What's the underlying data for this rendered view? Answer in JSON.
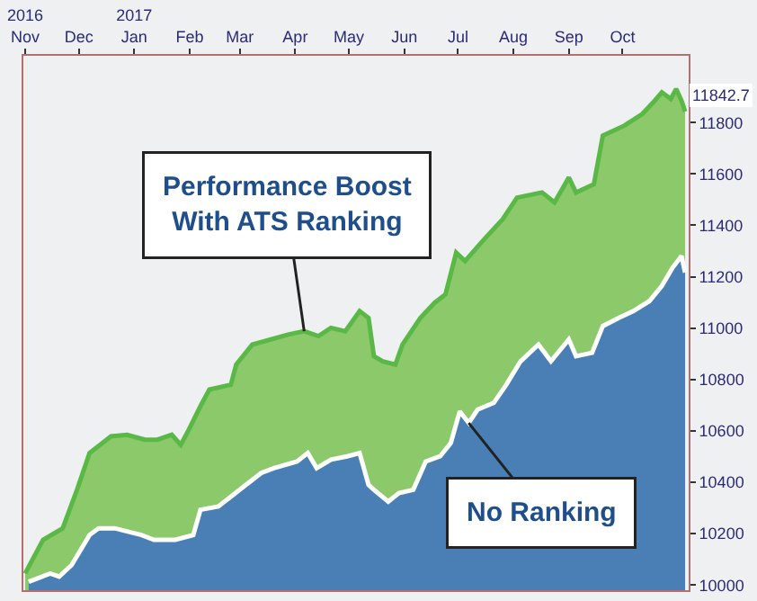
{
  "chart_data": {
    "type": "area",
    "xlim": [
      "2016-10-31",
      "2017-11-07"
    ],
    "xticks": [
      {
        "value": "2016-11-01",
        "label": "2016\nNov"
      },
      {
        "value": "2016-12-01",
        "label": "Dec"
      },
      {
        "value": "2017-01-01",
        "label": "2017\nJan"
      },
      {
        "value": "2017-02-01",
        "label": "Feb"
      },
      {
        "value": "2017-03-01",
        "label": "Mar"
      },
      {
        "value": "2017-04-01",
        "label": "Apr"
      },
      {
        "value": "2017-05-01",
        "label": "May"
      },
      {
        "value": "2017-06-01",
        "label": "Jun"
      },
      {
        "value": "2017-07-01",
        "label": "Jul"
      },
      {
        "value": "2017-08-01",
        "label": "Aug"
      },
      {
        "value": "2017-09-01",
        "label": "Sep"
      },
      {
        "value": "2017-10-01",
        "label": "Oct"
      }
    ],
    "ylim": [
      9980,
      12060
    ],
    "yticks": [
      10000,
      10200,
      10400,
      10600,
      10800,
      11000,
      11200,
      11400,
      11600,
      11800
    ],
    "grid": false,
    "legend": false,
    "series": [
      {
        "color": "#8cc96a",
        "x": [
          "2016-11-01",
          "2016-11-11",
          "2016-11-22",
          "2016-11-30",
          "2016-12-07",
          "2016-12-13",
          "2016-12-19",
          "2016-12-28",
          "2017-01-07",
          "2017-01-14",
          "2017-01-22",
          "2017-01-27",
          "2017-01-31",
          "2017-02-07",
          "2017-02-12",
          "2017-02-24",
          "2017-02-27",
          "2017-03-08",
          "2017-03-28",
          "2017-04-06",
          "2017-04-14",
          "2017-04-21",
          "2017-04-29",
          "2017-05-07",
          "2017-05-12",
          "2017-05-15",
          "2017-05-20",
          "2017-05-27",
          "2017-05-31",
          "2017-06-10",
          "2017-06-18",
          "2017-06-24",
          "2017-06-30",
          "2017-07-05",
          "2017-07-14",
          "2017-07-26",
          "2017-08-03",
          "2017-08-17",
          "2017-08-24",
          "2017-09-01",
          "2017-09-05",
          "2017-09-15",
          "2017-09-20",
          "2017-10-02",
          "2017-10-12",
          "2017-10-19",
          "2017-10-23",
          "2017-10-28",
          "2017-10-31",
          "2017-11-03",
          "2017-11-05"
        ],
        "values": [
          10045,
          10176,
          10221,
          10371,
          10514,
          10546,
          10579,
          10585,
          10566,
          10566,
          10585,
          10546,
          10598,
          10696,
          10761,
          10780,
          10858,
          10936,
          10975,
          10988,
          10969,
          11001,
          10988,
          11066,
          11040,
          10891,
          10871,
          10858,
          10936,
          11040,
          11099,
          11131,
          11294,
          11261,
          11333,
          11424,
          11508,
          11528,
          11489,
          11586,
          11528,
          11560,
          11749,
          11788,
          11833,
          11885,
          11918,
          11892,
          11931,
          11885,
          11842.7
        ]
      },
      {
        "color": "#4a7fb5",
        "x": [
          "2016-11-03",
          "2016-11-15",
          "2016-11-20",
          "2016-11-27",
          "2016-12-07",
          "2016-12-12",
          "2016-12-21",
          "2017-01-05",
          "2017-01-12",
          "2017-01-24",
          "2017-02-03",
          "2017-02-07",
          "2017-02-17",
          "2017-03-01",
          "2017-03-13",
          "2017-03-20",
          "2017-04-02",
          "2017-04-08",
          "2017-04-13",
          "2017-04-21",
          "2017-04-30",
          "2017-05-07",
          "2017-05-12",
          "2017-05-15",
          "2017-05-23",
          "2017-05-29",
          "2017-06-06",
          "2017-06-13",
          "2017-06-21",
          "2017-06-27",
          "2017-07-02",
          "2017-07-07",
          "2017-07-12",
          "2017-07-21",
          "2017-07-28",
          "2017-08-05",
          "2017-08-15",
          "2017-08-22",
          "2017-09-01",
          "2017-09-05",
          "2017-09-14",
          "2017-09-20",
          "2017-09-29",
          "2017-10-07",
          "2017-10-16",
          "2017-10-23",
          "2017-10-29",
          "2017-11-03",
          "2017-11-05"
        ],
        "values": [
          10013,
          10045,
          10033,
          10078,
          10195,
          10221,
          10221,
          10195,
          10176,
          10176,
          10195,
          10293,
          10306,
          10371,
          10436,
          10455,
          10481,
          10514,
          10455,
          10488,
          10501,
          10514,
          10390,
          10371,
          10325,
          10358,
          10371,
          10481,
          10501,
          10553,
          10676,
          10631,
          10683,
          10709,
          10780,
          10871,
          10936,
          10871,
          10956,
          10891,
          10904,
          11008,
          11040,
          11066,
          11105,
          11164,
          11235,
          11281,
          11216
        ]
      }
    ],
    "annotations": [
      {
        "text": "Performance Boost\nWith ATS Ranking",
        "x": "2017-04-06",
        "y": 10988
      },
      {
        "text": "No Ranking",
        "x": "2017-07-07",
        "y": 10631
      },
      {
        "text": "11842.7",
        "x": "2017-11-05",
        "y": 11842.7
      }
    ]
  }
}
